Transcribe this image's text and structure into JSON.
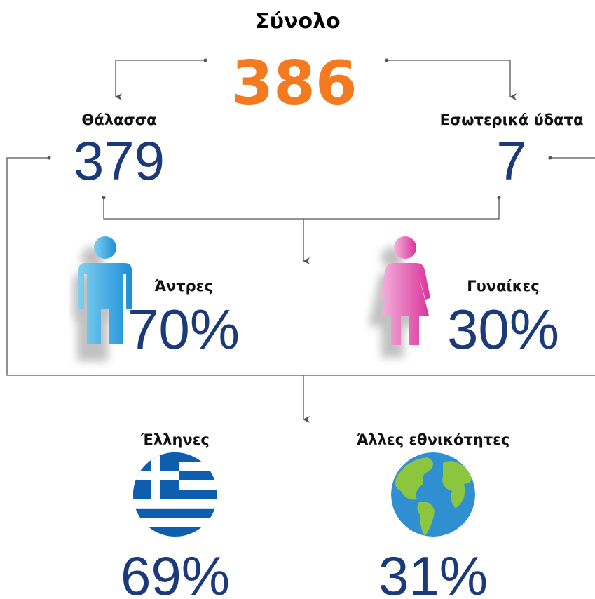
{
  "total": {
    "label": "Σύνολο",
    "value": 386
  },
  "sea": {
    "label": "Θάλασσα",
    "value": 379
  },
  "inland": {
    "label": "Εσωτερικά ύδατα",
    "value": 7
  },
  "men": {
    "label": "Άντρες",
    "value": "70%"
  },
  "women": {
    "label": "Γυναίκες",
    "value": "30%"
  },
  "greeks": {
    "label": "Έλληνες",
    "value": "69%"
  },
  "others": {
    "label": "Άλλες εθνικότητες",
    "value": "31%"
  }
}
